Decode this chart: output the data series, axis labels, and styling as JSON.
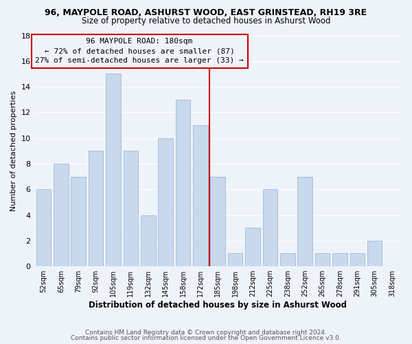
{
  "title_line1": "96, MAYPOLE ROAD, ASHURST WOOD, EAST GRINSTEAD, RH19 3RE",
  "title_line2": "Size of property relative to detached houses in Ashurst Wood",
  "xlabel": "Distribution of detached houses by size in Ashurst Wood",
  "ylabel": "Number of detached properties",
  "bar_labels": [
    "52sqm",
    "65sqm",
    "79sqm",
    "92sqm",
    "105sqm",
    "119sqm",
    "132sqm",
    "145sqm",
    "158sqm",
    "172sqm",
    "185sqm",
    "198sqm",
    "212sqm",
    "225sqm",
    "238sqm",
    "252sqm",
    "265sqm",
    "278sqm",
    "291sqm",
    "305sqm",
    "318sqm"
  ],
  "bar_values": [
    6,
    8,
    7,
    9,
    15,
    9,
    4,
    10,
    13,
    11,
    7,
    1,
    3,
    6,
    1,
    7,
    1,
    1,
    1,
    2,
    0
  ],
  "bar_color": "#c9d9ed",
  "bar_edge_color": "#a0b8d8",
  "vline_color": "#cc0000",
  "annotation_title": "96 MAYPOLE ROAD: 180sqm",
  "annotation_line1": "← 72% of detached houses are smaller (87)",
  "annotation_line2": "27% of semi-detached houses are larger (33) →",
  "annotation_box_edge_color": "#cc0000",
  "ylim": [
    0,
    18
  ],
  "yticks": [
    0,
    2,
    4,
    6,
    8,
    10,
    12,
    14,
    16,
    18
  ],
  "footer_line1": "Contains HM Land Registry data © Crown copyright and database right 2024.",
  "footer_line2": "Contains public sector information licensed under the Open Government Licence v3.0.",
  "background_color": "#eef2f9"
}
